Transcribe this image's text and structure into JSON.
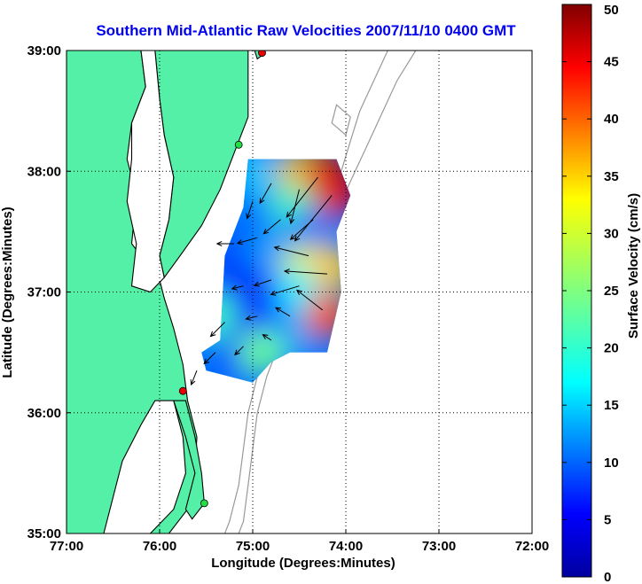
{
  "chart_data": {
    "type": "heatmap",
    "title": "Southern Mid-Atlantic Raw Velocities 2007/11/10 0400 GMT",
    "xlabel": "Longitude (Degrees:Minutes)",
    "ylabel": "Latitude (Degrees:Minutes)",
    "colorbar_label": "Surface Velocity (cm/s)",
    "xlim": [
      -77,
      -72
    ],
    "ylim": [
      35,
      39
    ],
    "x_ticks": [
      {
        "value": -77,
        "label": "77:00"
      },
      {
        "value": -76,
        "label": "76:00"
      },
      {
        "value": -75,
        "label": "75:00"
      },
      {
        "value": -74,
        "label": "74:00"
      },
      {
        "value": -73,
        "label": "73:00"
      },
      {
        "value": -72,
        "label": "72:00"
      }
    ],
    "y_ticks": [
      {
        "value": 35,
        "label": "35:00"
      },
      {
        "value": 36,
        "label": "36:00"
      },
      {
        "value": 37,
        "label": "37:00"
      },
      {
        "value": 38,
        "label": "38:00"
      },
      {
        "value": 39,
        "label": "39:00"
      }
    ],
    "colorbar_range": [
      0,
      50
    ],
    "colorbar_ticks": [
      0,
      5,
      10,
      15,
      20,
      25,
      30,
      35,
      40,
      45,
      50
    ],
    "colormap": "jet",
    "grid": "dotted",
    "colors": {
      "land": "#55f0a8",
      "coastline": "#000000",
      "bathymetry": "#999999",
      "title": "#0000ee",
      "station_active": "#ee0000",
      "station_inactive": "#22dd44"
    },
    "stations": [
      {
        "lon": -74.9,
        "lat": 38.98,
        "status": "active"
      },
      {
        "lon": -75.15,
        "lat": 38.22,
        "status": "inactive"
      },
      {
        "lon": -75.75,
        "lat": 36.18,
        "status": "active"
      },
      {
        "lon": -75.52,
        "lat": 35.25,
        "status": "inactive"
      }
    ],
    "domain_outline": [
      [
        -75.05,
        38.1
      ],
      [
        -74.1,
        38.1
      ],
      [
        -73.95,
        37.8
      ],
      [
        -74.1,
        37.5
      ],
      [
        -74.05,
        37.0
      ],
      [
        -74.2,
        36.5
      ],
      [
        -74.6,
        36.5
      ],
      [
        -74.8,
        36.42
      ],
      [
        -75.0,
        36.25
      ],
      [
        -75.5,
        36.35
      ],
      [
        -75.55,
        36.5
      ],
      [
        -75.35,
        36.6
      ],
      [
        -75.3,
        37.3
      ],
      [
        -75.1,
        37.7
      ]
    ],
    "velocity_samples": [
      {
        "lon": -75.0,
        "lat": 38.0,
        "speed": 16
      },
      {
        "lon": -74.5,
        "lat": 38.0,
        "speed": 34
      },
      {
        "lon": -74.2,
        "lat": 38.0,
        "speed": 46
      },
      {
        "lon": -74.1,
        "lat": 37.8,
        "speed": 45
      },
      {
        "lon": -74.6,
        "lat": 37.7,
        "speed": 22
      },
      {
        "lon": -75.0,
        "lat": 37.6,
        "speed": 12
      },
      {
        "lon": -74.4,
        "lat": 37.5,
        "speed": 12
      },
      {
        "lon": -75.2,
        "lat": 37.3,
        "speed": 10
      },
      {
        "lon": -74.8,
        "lat": 37.3,
        "speed": 14
      },
      {
        "lon": -74.45,
        "lat": 37.2,
        "speed": 30
      },
      {
        "lon": -74.15,
        "lat": 37.2,
        "speed": 34
      },
      {
        "lon": -75.2,
        "lat": 37.0,
        "speed": 6
      },
      {
        "lon": -74.9,
        "lat": 37.0,
        "speed": 9
      },
      {
        "lon": -74.5,
        "lat": 37.0,
        "speed": 18
      },
      {
        "lon": -74.2,
        "lat": 36.8,
        "speed": 40
      },
      {
        "lon": -75.4,
        "lat": 36.8,
        "speed": 22
      },
      {
        "lon": -75.0,
        "lat": 36.7,
        "speed": 8
      },
      {
        "lon": -74.6,
        "lat": 36.6,
        "speed": 14
      },
      {
        "lon": -75.2,
        "lat": 36.45,
        "speed": 10
      },
      {
        "lon": -74.9,
        "lat": 36.5,
        "speed": 24
      }
    ],
    "vectors": [
      {
        "lon": -74.3,
        "lat": 37.95,
        "u": -22,
        "v": -28
      },
      {
        "lon": -74.15,
        "lat": 37.8,
        "u": -26,
        "v": -32
      },
      {
        "lon": -74.5,
        "lat": 37.85,
        "u": -6,
        "v": -24
      },
      {
        "lon": -74.8,
        "lat": 37.9,
        "u": -8,
        "v": -14
      },
      {
        "lon": -75.0,
        "lat": 37.75,
        "u": -4,
        "v": -12
      },
      {
        "lon": -74.7,
        "lat": 37.6,
        "u": -12,
        "v": -10
      },
      {
        "lon": -74.95,
        "lat": 37.45,
        "u": -14,
        "v": -4
      },
      {
        "lon": -75.2,
        "lat": 37.4,
        "u": -12,
        "v": 0
      },
      {
        "lon": -74.4,
        "lat": 37.3,
        "u": -24,
        "v": 6
      },
      {
        "lon": -74.2,
        "lat": 37.15,
        "u": -30,
        "v": 2
      },
      {
        "lon": -74.5,
        "lat": 37.05,
        "u": -20,
        "v": -6
      },
      {
        "lon": -74.8,
        "lat": 37.1,
        "u": -12,
        "v": -4
      },
      {
        "lon": -75.1,
        "lat": 37.05,
        "u": -8,
        "v": -2
      },
      {
        "lon": -74.25,
        "lat": 36.85,
        "u": -18,
        "v": 14
      },
      {
        "lon": -74.6,
        "lat": 36.8,
        "u": -10,
        "v": 6
      },
      {
        "lon": -74.95,
        "lat": 36.8,
        "u": -8,
        "v": -2
      },
      {
        "lon": -75.3,
        "lat": 36.75,
        "u": -10,
        "v": -10
      },
      {
        "lon": -74.8,
        "lat": 36.6,
        "u": -6,
        "v": 4
      },
      {
        "lon": -75.1,
        "lat": 36.55,
        "u": -6,
        "v": -6
      },
      {
        "lon": -75.4,
        "lat": 36.5,
        "u": -8,
        "v": -8
      },
      {
        "lon": -75.6,
        "lat": 36.35,
        "u": -4,
        "v": -10
      },
      {
        "lon": -74.35,
        "lat": 37.6,
        "u": -16,
        "v": -14
      }
    ]
  }
}
